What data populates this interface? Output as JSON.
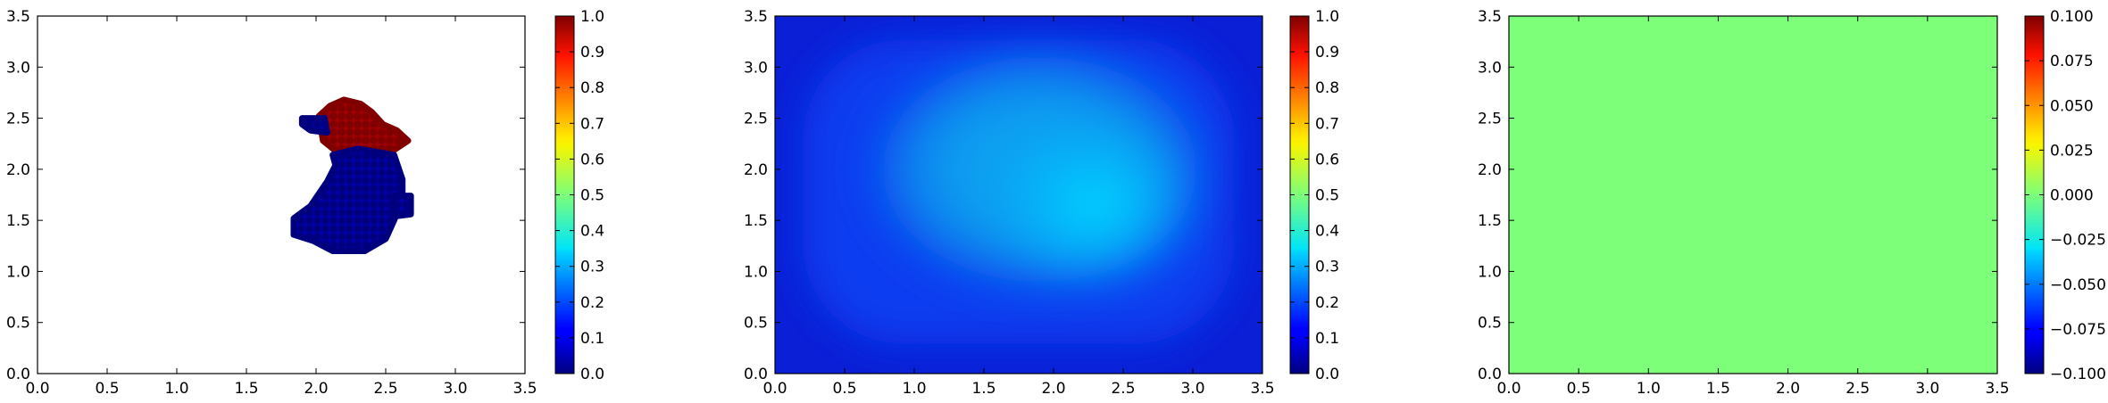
{
  "chart_data": [
    {
      "type": "scatter",
      "xlim": [
        0.0,
        3.5
      ],
      "ylim": [
        0.0,
        3.5
      ],
      "xticks": [
        "0.0",
        "0.5",
        "1.0",
        "1.5",
        "2.0",
        "2.5",
        "3.0",
        "3.5"
      ],
      "yticks": [
        "0.0",
        "0.5",
        "1.0",
        "1.5",
        "2.0",
        "2.5",
        "3.0",
        "3.5"
      ],
      "grid": false,
      "colormap": "jet",
      "colorbar": {
        "range": [
          0.0,
          1.0
        ],
        "ticks": [
          "0.0",
          "0.1",
          "0.2",
          "0.3",
          "0.4",
          "0.5",
          "0.6",
          "0.7",
          "0.8",
          "0.9",
          "1.0"
        ]
      },
      "clusters": [
        {
          "value": 1.0,
          "color": "#800000",
          "outline": [
            [
              2.02,
              2.52
            ],
            [
              2.1,
              2.62
            ],
            [
              2.2,
              2.68
            ],
            [
              2.32,
              2.64
            ],
            [
              2.4,
              2.56
            ],
            [
              2.48,
              2.44
            ],
            [
              2.58,
              2.38
            ],
            [
              2.66,
              2.28
            ],
            [
              2.55,
              2.18
            ],
            [
              2.35,
              2.14
            ],
            [
              2.15,
              2.17
            ],
            [
              2.05,
              2.28
            ]
          ]
        },
        {
          "value": 0.0,
          "color": "#00007f",
          "outline": [
            [
              2.12,
              2.14
            ],
            [
              2.3,
              2.2
            ],
            [
              2.56,
              2.14
            ],
            [
              2.62,
              1.9
            ],
            [
              2.62,
              1.7
            ],
            [
              2.56,
              1.5
            ],
            [
              2.5,
              1.32
            ],
            [
              2.35,
              1.2
            ],
            [
              2.12,
              1.2
            ],
            [
              1.98,
              1.3
            ],
            [
              1.84,
              1.36
            ],
            [
              1.84,
              1.52
            ],
            [
              1.96,
              1.64
            ],
            [
              2.08,
              1.88
            ],
            [
              2.14,
              2.04
            ]
          ]
        },
        {
          "value": 0.0,
          "color": "#00007f",
          "outline": [
            [
              1.9,
              2.5
            ],
            [
              2.06,
              2.5
            ],
            [
              2.08,
              2.36
            ],
            [
              1.96,
              2.38
            ],
            [
              1.9,
              2.44
            ]
          ]
        },
        {
          "value": 0.0,
          "color": "#00007f",
          "outline": [
            [
              2.56,
              1.74
            ],
            [
              2.68,
              1.74
            ],
            [
              2.68,
              1.56
            ],
            [
              2.56,
              1.54
            ]
          ]
        }
      ]
    },
    {
      "type": "heatmap",
      "xlim": [
        0.0,
        3.5
      ],
      "ylim": [
        0.0,
        3.5
      ],
      "xticks": [
        "0.0",
        "0.5",
        "1.0",
        "1.5",
        "2.0",
        "2.5",
        "3.0",
        "3.5"
      ],
      "yticks": [
        "0.0",
        "0.5",
        "1.0",
        "1.5",
        "2.0",
        "2.5",
        "3.0",
        "3.5"
      ],
      "grid": false,
      "colormap": "jet",
      "field": {
        "base_value": 0.07,
        "inner_value": 0.3,
        "peak_value": 0.36,
        "inner_region": {
          "x": [
            0.8,
            3.0
          ],
          "y": [
            1.0,
            3.0
          ]
        },
        "peak_center": [
          2.3,
          1.65
        ]
      },
      "colorbar": {
        "range": [
          0.0,
          1.0
        ],
        "ticks": [
          "0.0",
          "0.1",
          "0.2",
          "0.3",
          "0.4",
          "0.5",
          "0.6",
          "0.7",
          "0.8",
          "0.9",
          "1.0"
        ]
      }
    },
    {
      "type": "heatmap",
      "xlim": [
        0.0,
        3.5
      ],
      "ylim": [
        0.0,
        3.5
      ],
      "xticks": [
        "0.0",
        "0.5",
        "1.0",
        "1.5",
        "2.0",
        "2.5",
        "3.0",
        "3.5"
      ],
      "yticks": [
        "0.0",
        "0.5",
        "1.0",
        "1.5",
        "2.0",
        "2.5",
        "3.0",
        "3.5"
      ],
      "grid": false,
      "colormap": "jet",
      "field": {
        "uniform_value": 0.0,
        "color": "#7dff7a"
      },
      "colorbar": {
        "range": [
          -0.1,
          0.1
        ],
        "ticks": [
          "−0.100",
          "−0.075",
          "−0.050",
          "−0.025",
          "0.000",
          "0.025",
          "0.050",
          "0.075",
          "0.100"
        ]
      }
    }
  ]
}
